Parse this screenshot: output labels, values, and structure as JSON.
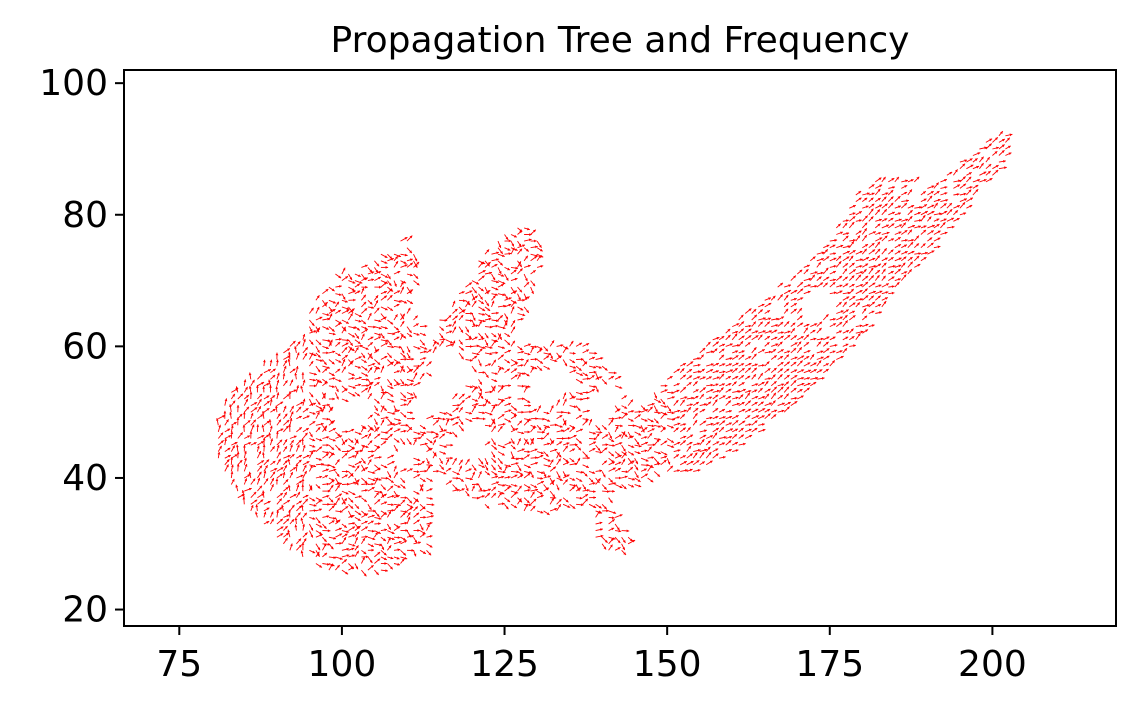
{
  "chart_data": {
    "type": "quiver",
    "title": "Propagation Tree and Frequency",
    "xlabel": "",
    "ylabel": "",
    "xlim": [
      66.5,
      219
    ],
    "ylim": [
      17.5,
      102
    ],
    "x_ticks": [
      75,
      100,
      125,
      150,
      175,
      200
    ],
    "y_ticks": [
      20,
      40,
      60,
      80,
      100
    ],
    "grid": false,
    "legend": "none",
    "color": "#ff0000",
    "grid_step": 1,
    "regions": [
      {
        "name": "left-blob",
        "polygon": [
          [
            80,
            48
          ],
          [
            83,
            53
          ],
          [
            88,
            57
          ],
          [
            93,
            61
          ],
          [
            96,
            67
          ],
          [
            99,
            71
          ],
          [
            103,
            72
          ],
          [
            106,
            74
          ],
          [
            110,
            77
          ],
          [
            112,
            72
          ],
          [
            110,
            66
          ],
          [
            113,
            62
          ],
          [
            113,
            57
          ],
          [
            111,
            52
          ],
          [
            110,
            45
          ],
          [
            115,
            44
          ],
          [
            113,
            39
          ],
          [
            114,
            34
          ],
          [
            114,
            29
          ],
          [
            110,
            27
          ],
          [
            104,
            25
          ],
          [
            98,
            26
          ],
          [
            92,
            29
          ],
          [
            88,
            33
          ],
          [
            84,
            37
          ],
          [
            81,
            43
          ]
        ]
      },
      {
        "name": "upper-mid-blob",
        "polygon": [
          [
            112,
            56
          ],
          [
            114,
            63
          ],
          [
            118,
            68
          ],
          [
            121,
            73
          ],
          [
            125,
            77
          ],
          [
            128,
            79
          ],
          [
            131,
            75
          ],
          [
            129,
            68
          ],
          [
            127,
            63
          ],
          [
            124,
            59
          ],
          [
            119,
            56
          ],
          [
            115,
            55
          ]
        ]
      },
      {
        "name": "center-band",
        "polygon": [
          [
            110,
            46
          ],
          [
            114,
            50
          ],
          [
            118,
            53
          ],
          [
            122,
            57
          ],
          [
            126,
            60
          ],
          [
            131,
            61
          ],
          [
            136,
            61
          ],
          [
            140,
            58
          ],
          [
            143,
            54
          ],
          [
            145,
            50
          ],
          [
            148,
            53
          ],
          [
            152,
            57
          ],
          [
            157,
            61
          ],
          [
            162,
            65
          ],
          [
            167,
            69
          ],
          [
            172,
            73
          ],
          [
            176,
            78
          ],
          [
            179,
            83
          ],
          [
            182,
            85
          ],
          [
            186,
            86
          ],
          [
            189,
            86
          ],
          [
            186,
            80
          ],
          [
            181,
            73
          ],
          [
            176,
            66
          ],
          [
            171,
            60
          ],
          [
            166,
            55
          ],
          [
            160,
            50
          ],
          [
            155,
            46
          ],
          [
            149,
            41
          ],
          [
            144,
            38
          ],
          [
            139,
            36
          ],
          [
            134,
            35
          ],
          [
            128,
            35
          ],
          [
            122,
            36
          ],
          [
            117,
            38
          ],
          [
            114,
            41
          ]
        ]
      },
      {
        "name": "right-tail",
        "polygon": [
          [
            160,
            60
          ],
          [
            165,
            64
          ],
          [
            170,
            68
          ],
          [
            175,
            71
          ],
          [
            180,
            75
          ],
          [
            185,
            79
          ],
          [
            190,
            84
          ],
          [
            195,
            88
          ],
          [
            199,
            91
          ],
          [
            203,
            93
          ],
          [
            202,
            88
          ],
          [
            197,
            82
          ],
          [
            192,
            76
          ],
          [
            187,
            70
          ],
          [
            182,
            64
          ],
          [
            177,
            58
          ],
          [
            172,
            53
          ],
          [
            167,
            49
          ],
          [
            162,
            45
          ],
          [
            157,
            42
          ],
          [
            153,
            40
          ],
          [
            150,
            41
          ],
          [
            152,
            46
          ],
          [
            156,
            53
          ]
        ]
      },
      {
        "name": "lower-tail",
        "polygon": [
          [
            140,
            37
          ],
          [
            143,
            33
          ],
          [
            145,
            30
          ],
          [
            142,
            28
          ],
          [
            139,
            31
          ],
          [
            138,
            35
          ]
        ]
      }
    ],
    "holes": [
      {
        "polygon": [
          [
            113,
            58
          ],
          [
            117,
            60
          ],
          [
            120,
            57
          ],
          [
            118,
            52
          ],
          [
            114,
            53
          ]
        ]
      },
      {
        "polygon": [
          [
            128,
            55
          ],
          [
            133,
            58
          ],
          [
            136,
            55
          ],
          [
            133,
            51
          ],
          [
            129,
            51
          ]
        ]
      },
      {
        "polygon": [
          [
            138,
            52
          ],
          [
            141,
            55
          ],
          [
            143,
            53
          ],
          [
            141,
            49
          ],
          [
            138,
            49
          ]
        ]
      },
      {
        "polygon": [
          [
            116,
            46
          ],
          [
            120,
            49
          ],
          [
            123,
            47
          ],
          [
            121,
            43
          ],
          [
            117,
            43
          ]
        ]
      },
      {
        "polygon": [
          [
            99,
            51
          ],
          [
            103,
            53
          ],
          [
            105,
            50
          ],
          [
            102,
            47
          ],
          [
            99,
            48
          ]
        ]
      },
      {
        "polygon": [
          [
            163,
            75
          ],
          [
            167,
            77
          ],
          [
            169,
            74
          ],
          [
            166,
            71
          ],
          [
            163,
            72
          ]
        ]
      },
      {
        "polygon": [
          [
            170,
            66
          ],
          [
            173,
            69
          ],
          [
            176,
            67
          ],
          [
            174,
            64
          ],
          [
            171,
            64
          ]
        ]
      },
      {
        "polygon": [
          [
            107,
            44
          ],
          [
            110,
            46
          ],
          [
            111,
            42
          ],
          [
            108,
            41
          ]
        ]
      }
    ]
  }
}
